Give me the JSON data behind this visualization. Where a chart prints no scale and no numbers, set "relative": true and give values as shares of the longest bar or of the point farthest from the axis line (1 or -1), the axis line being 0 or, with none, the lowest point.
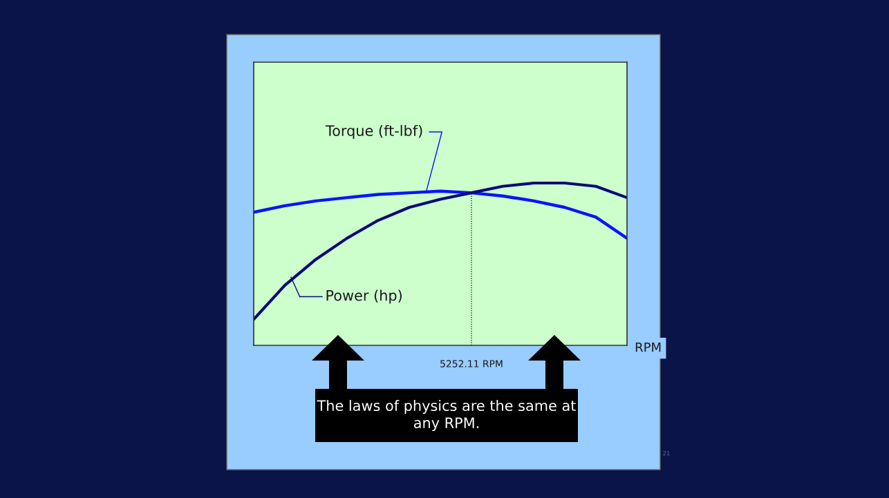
{
  "chart_data": {
    "type": "line",
    "relative": true,
    "xlabel": "RPM",
    "categories": [
      null,
      null,
      null,
      null,
      null,
      null,
      null,
      null,
      null,
      null,
      null,
      null,
      null
    ],
    "series": [
      {
        "name": "Torque (ft-lbf)",
        "color": "#0a14ff",
        "values": [
          0.82,
          0.86,
          0.89,
          0.91,
          0.93,
          0.94,
          0.95,
          0.94,
          0.92,
          0.89,
          0.85,
          0.79,
          0.66
        ]
      },
      {
        "name": "Power (hp)",
        "color": "#0a0a78",
        "values": [
          0.16,
          0.37,
          0.53,
          0.66,
          0.77,
          0.85,
          0.9,
          0.94,
          0.98,
          1.0,
          1.0,
          0.98,
          0.91
        ]
      }
    ],
    "annotations": [
      "The laws of physics are the same at any RPM.",
      "21",
      "5252.11 RPM"
    ],
    "grid": false,
    "marker": "none",
    "line_style": "solid"
  }
}
